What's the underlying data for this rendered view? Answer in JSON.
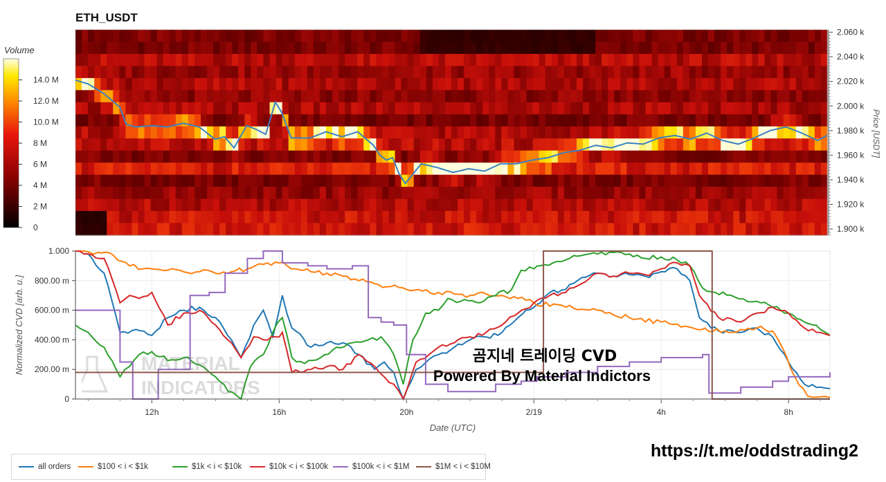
{
  "chart_data": [
    {
      "type": "heatmap",
      "title": "ETH_USDT",
      "ylabel": "Price [USDT]",
      "ylim": [
        1895,
        2062
      ],
      "y_ticks": [
        "1.900 k",
        "1.920 k",
        "1.940 k",
        "1.960 k",
        "1.980 k",
        "2.000 k",
        "2.020 k",
        "2.040 k",
        "2.060 k"
      ],
      "colorbar": {
        "label": "Volume",
        "ticks": [
          "0",
          "2 M",
          "4 M",
          "6 M",
          "8 M",
          "10.0 M",
          "12.0 M",
          "14.0 M"
        ],
        "range": [
          0,
          16
        ]
      },
      "price_line": {
        "color": "#3a7fc4",
        "x_hours": [
          9.6,
          10,
          10.5,
          11,
          11.2,
          11.5,
          12,
          12.5,
          13,
          13.5,
          14,
          14.3,
          14.6,
          15,
          15.3,
          15.6,
          15.9,
          16.1,
          16.4,
          17,
          17.5,
          18,
          18.5,
          19,
          19.2,
          19.4,
          19.6,
          19.8,
          20,
          20.5,
          21,
          21.5,
          22,
          22.5,
          23,
          23.5,
          24,
          24.5,
          25,
          25.5,
          26,
          26.5,
          27,
          27.5,
          28,
          28.5,
          29,
          29.5,
          30,
          30.5,
          31,
          31.5,
          32,
          32.5,
          33,
          33.3
        ],
        "values": [
          2021,
          2018,
          2010,
          1999,
          1985,
          1983,
          1984,
          1983,
          1986,
          1983,
          1973,
          1975,
          1966,
          1984,
          1981,
          1977,
          2003,
          1995,
          1974,
          1974,
          1979,
          1975,
          1979,
          1968,
          1960,
          1956,
          1958,
          1945,
          1937,
          1953,
          1950,
          1946,
          1949,
          1947,
          1953,
          1953,
          1956,
          1958,
          1962,
          1964,
          1968,
          1966,
          1970,
          1969,
          1974,
          1976,
          1973,
          1978,
          1972,
          1969,
          1974,
          1980,
          1983,
          1978,
          1972,
          1976
        ]
      }
    },
    {
      "type": "line",
      "xlabel": "Date (UTC)",
      "ylabel": "Normalized CVD [arb. u.]",
      "ylim": [
        0,
        1
      ],
      "xlim_hours": [
        9.6,
        33.3
      ],
      "x_ticks": [
        {
          "hour": 12,
          "label": "12h"
        },
        {
          "hour": 16,
          "label": "16h"
        },
        {
          "hour": 20,
          "label": "20h"
        },
        {
          "hour": 24,
          "label": "2/19"
        },
        {
          "hour": 28,
          "label": "4h"
        },
        {
          "hour": 32,
          "label": "8h"
        }
      ],
      "y_ticks": [
        "0",
        "200.00 m",
        "400.00 m",
        "600.00 m",
        "800.00 m",
        "1.000"
      ],
      "series": [
        {
          "name": "all orders",
          "color": "#1f77b4",
          "x": [
            9.6,
            10,
            10.5,
            11,
            11.5,
            12,
            12.5,
            13,
            13.5,
            14,
            14.5,
            14.8,
            15.2,
            15.5,
            15.8,
            16.1,
            16.4,
            17,
            17.5,
            18,
            18.5,
            19,
            19.3,
            19.6,
            19.9,
            20.3,
            21,
            21.5,
            22,
            22.5,
            23,
            23.5,
            24,
            24.2,
            24.5,
            25,
            25.5,
            26,
            26.5,
            27,
            27.5,
            28,
            28.5,
            28.9,
            29.2,
            29.8,
            30.5,
            31,
            31.5,
            32,
            32.5,
            33,
            33.3
          ],
          "values": [
            1.0,
            0.98,
            0.85,
            0.45,
            0.47,
            0.43,
            0.55,
            0.6,
            0.62,
            0.55,
            0.4,
            0.28,
            0.5,
            0.6,
            0.42,
            0.7,
            0.48,
            0.35,
            0.38,
            0.38,
            0.3,
            0.2,
            0.25,
            0.18,
            0.0,
            0.2,
            0.3,
            0.35,
            0.4,
            0.42,
            0.45,
            0.55,
            0.62,
            0.65,
            0.72,
            0.74,
            0.82,
            0.85,
            0.83,
            0.84,
            0.83,
            0.86,
            0.88,
            0.8,
            0.55,
            0.46,
            0.45,
            0.48,
            0.42,
            0.25,
            0.1,
            0.08,
            0.07
          ]
        },
        {
          "name": "$100 < i < $1k",
          "color": "#ff7f0e",
          "x": [
            9.6,
            10.3,
            10.8,
            11.3,
            12,
            12.5,
            13,
            13.5,
            14,
            14.5,
            15,
            15.5,
            16,
            16.5,
            17,
            17.5,
            18,
            18.5,
            19,
            19.5,
            20,
            20.5,
            21,
            21.5,
            22,
            22.5,
            23,
            23.5,
            24,
            25,
            26,
            27,
            28,
            29,
            30,
            30.5,
            31,
            31.5,
            31.8,
            32.2,
            32.6,
            33.3
          ],
          "values": [
            1.0,
            0.99,
            0.97,
            0.9,
            0.88,
            0.87,
            0.86,
            0.86,
            0.85,
            0.86,
            0.88,
            0.91,
            0.92,
            0.88,
            0.86,
            0.85,
            0.83,
            0.8,
            0.78,
            0.76,
            0.74,
            0.73,
            0.72,
            0.71,
            0.7,
            0.71,
            0.7,
            0.68,
            0.65,
            0.62,
            0.6,
            0.55,
            0.52,
            0.48,
            0.46,
            0.47,
            0.48,
            0.46,
            0.35,
            0.15,
            0.02,
            0.01
          ]
        },
        {
          "name": "$1k < i < $10k",
          "color": "#2ca02c",
          "x": [
            9.6,
            10,
            10.5,
            11,
            11.3,
            11.6,
            12,
            12.5,
            13,
            13.5,
            14,
            14.4,
            14.8,
            15.1,
            15.5,
            15.8,
            16.1,
            16.4,
            16.8,
            17.3,
            17.8,
            18.3,
            18.8,
            19.2,
            19.6,
            19.9,
            20.2,
            20.6,
            21,
            21.3,
            21.7,
            22.3,
            22.8,
            23.3,
            23.6,
            24,
            24.2,
            24.6,
            25,
            25.5,
            26,
            26.5,
            27,
            27.5,
            28,
            28.5,
            28.9,
            29.3,
            29.7,
            30.3,
            31,
            31.5,
            32,
            32.5,
            33,
            33.3
          ],
          "values": [
            0.5,
            0.45,
            0.35,
            0.15,
            0.22,
            0.3,
            0.32,
            0.26,
            0.28,
            0.23,
            0.15,
            0.05,
            0.0,
            0.22,
            0.3,
            0.45,
            0.55,
            0.28,
            0.24,
            0.28,
            0.35,
            0.38,
            0.4,
            0.42,
            0.3,
            0.1,
            0.4,
            0.58,
            0.6,
            0.68,
            0.66,
            0.65,
            0.7,
            0.74,
            0.87,
            0.88,
            0.9,
            0.92,
            0.94,
            0.97,
            0.98,
            0.99,
            0.98,
            0.95,
            0.96,
            0.94,
            0.9,
            0.75,
            0.72,
            0.69,
            0.66,
            0.62,
            0.58,
            0.52,
            0.47,
            0.43
          ]
        },
        {
          "name": "$10k < i < $100k",
          "color": "#d62728",
          "x": [
            9.6,
            10,
            10.5,
            11,
            11.3,
            11.6,
            12,
            12.5,
            13,
            13.5,
            14,
            14.5,
            14.8,
            15.2,
            15.5,
            15.9,
            16.1,
            16.4,
            17,
            17.5,
            18,
            18.5,
            19,
            19.3,
            19.6,
            19.9,
            20.3,
            21,
            21.5,
            22,
            22.5,
            23,
            23.5,
            24,
            24.5,
            25,
            25.5,
            26,
            26.5,
            27,
            27.5,
            28,
            28.5,
            28.9,
            29.2,
            29.8,
            30.5,
            31,
            31.5,
            32,
            32.5,
            33,
            33.3
          ],
          "values": [
            1.0,
            0.98,
            0.95,
            0.65,
            0.7,
            0.68,
            0.72,
            0.5,
            0.58,
            0.6,
            0.5,
            0.38,
            0.28,
            0.42,
            0.4,
            0.42,
            0.45,
            0.18,
            0.2,
            0.22,
            0.2,
            0.3,
            0.22,
            0.15,
            0.1,
            0.0,
            0.25,
            0.35,
            0.38,
            0.42,
            0.45,
            0.5,
            0.58,
            0.65,
            0.7,
            0.72,
            0.78,
            0.85,
            0.83,
            0.85,
            0.84,
            0.88,
            0.92,
            0.9,
            0.7,
            0.55,
            0.52,
            0.58,
            0.62,
            0.58,
            0.48,
            0.45,
            0.43
          ]
        },
        {
          "name": "$100k < i < $1M",
          "color": "#9467bd",
          "step": true,
          "x": [
            9.6,
            10.6,
            11.0,
            11.4,
            12.2,
            13.2,
            13.8,
            14.3,
            15.0,
            15.5,
            16.1,
            16.9,
            17.5,
            18.3,
            18.8,
            19.2,
            19.6,
            20.0,
            20.6,
            21.3,
            22.0,
            22.8,
            23.6,
            24.1,
            25.0,
            26.0,
            27.0,
            28.0,
            29.3,
            29.5,
            30.5,
            31.5,
            32.0,
            33.0,
            33.3
          ],
          "values": [
            0.6,
            0.6,
            0.25,
            0.0,
            0.2,
            0.7,
            0.72,
            0.85,
            0.95,
            1.0,
            0.92,
            0.9,
            0.88,
            0.9,
            0.55,
            0.52,
            0.5,
            0.3,
            0.1,
            0.05,
            0.05,
            0.1,
            0.12,
            0.15,
            0.18,
            0.22,
            0.25,
            0.28,
            0.3,
            0.04,
            0.08,
            0.12,
            0.15,
            0.15,
            0.18
          ]
        },
        {
          "name": "$1M < i < $10M",
          "color": "#8c564b",
          "step": true,
          "x": [
            9.6,
            24.3,
            24.3,
            29.5,
            29.6,
            33.3
          ],
          "values": [
            0.18,
            0.18,
            1.0,
            1.0,
            0.0,
            0.0
          ]
        }
      ]
    }
  ],
  "overlay": {
    "line1": "곰지네 트레이딩 CVD",
    "line2": "Powered By Material Indictors"
  },
  "watermark": {
    "line1": "MATERIAL",
    "line2": "INDICATORS"
  },
  "footer_link": "https://t.me/oddstrading2"
}
